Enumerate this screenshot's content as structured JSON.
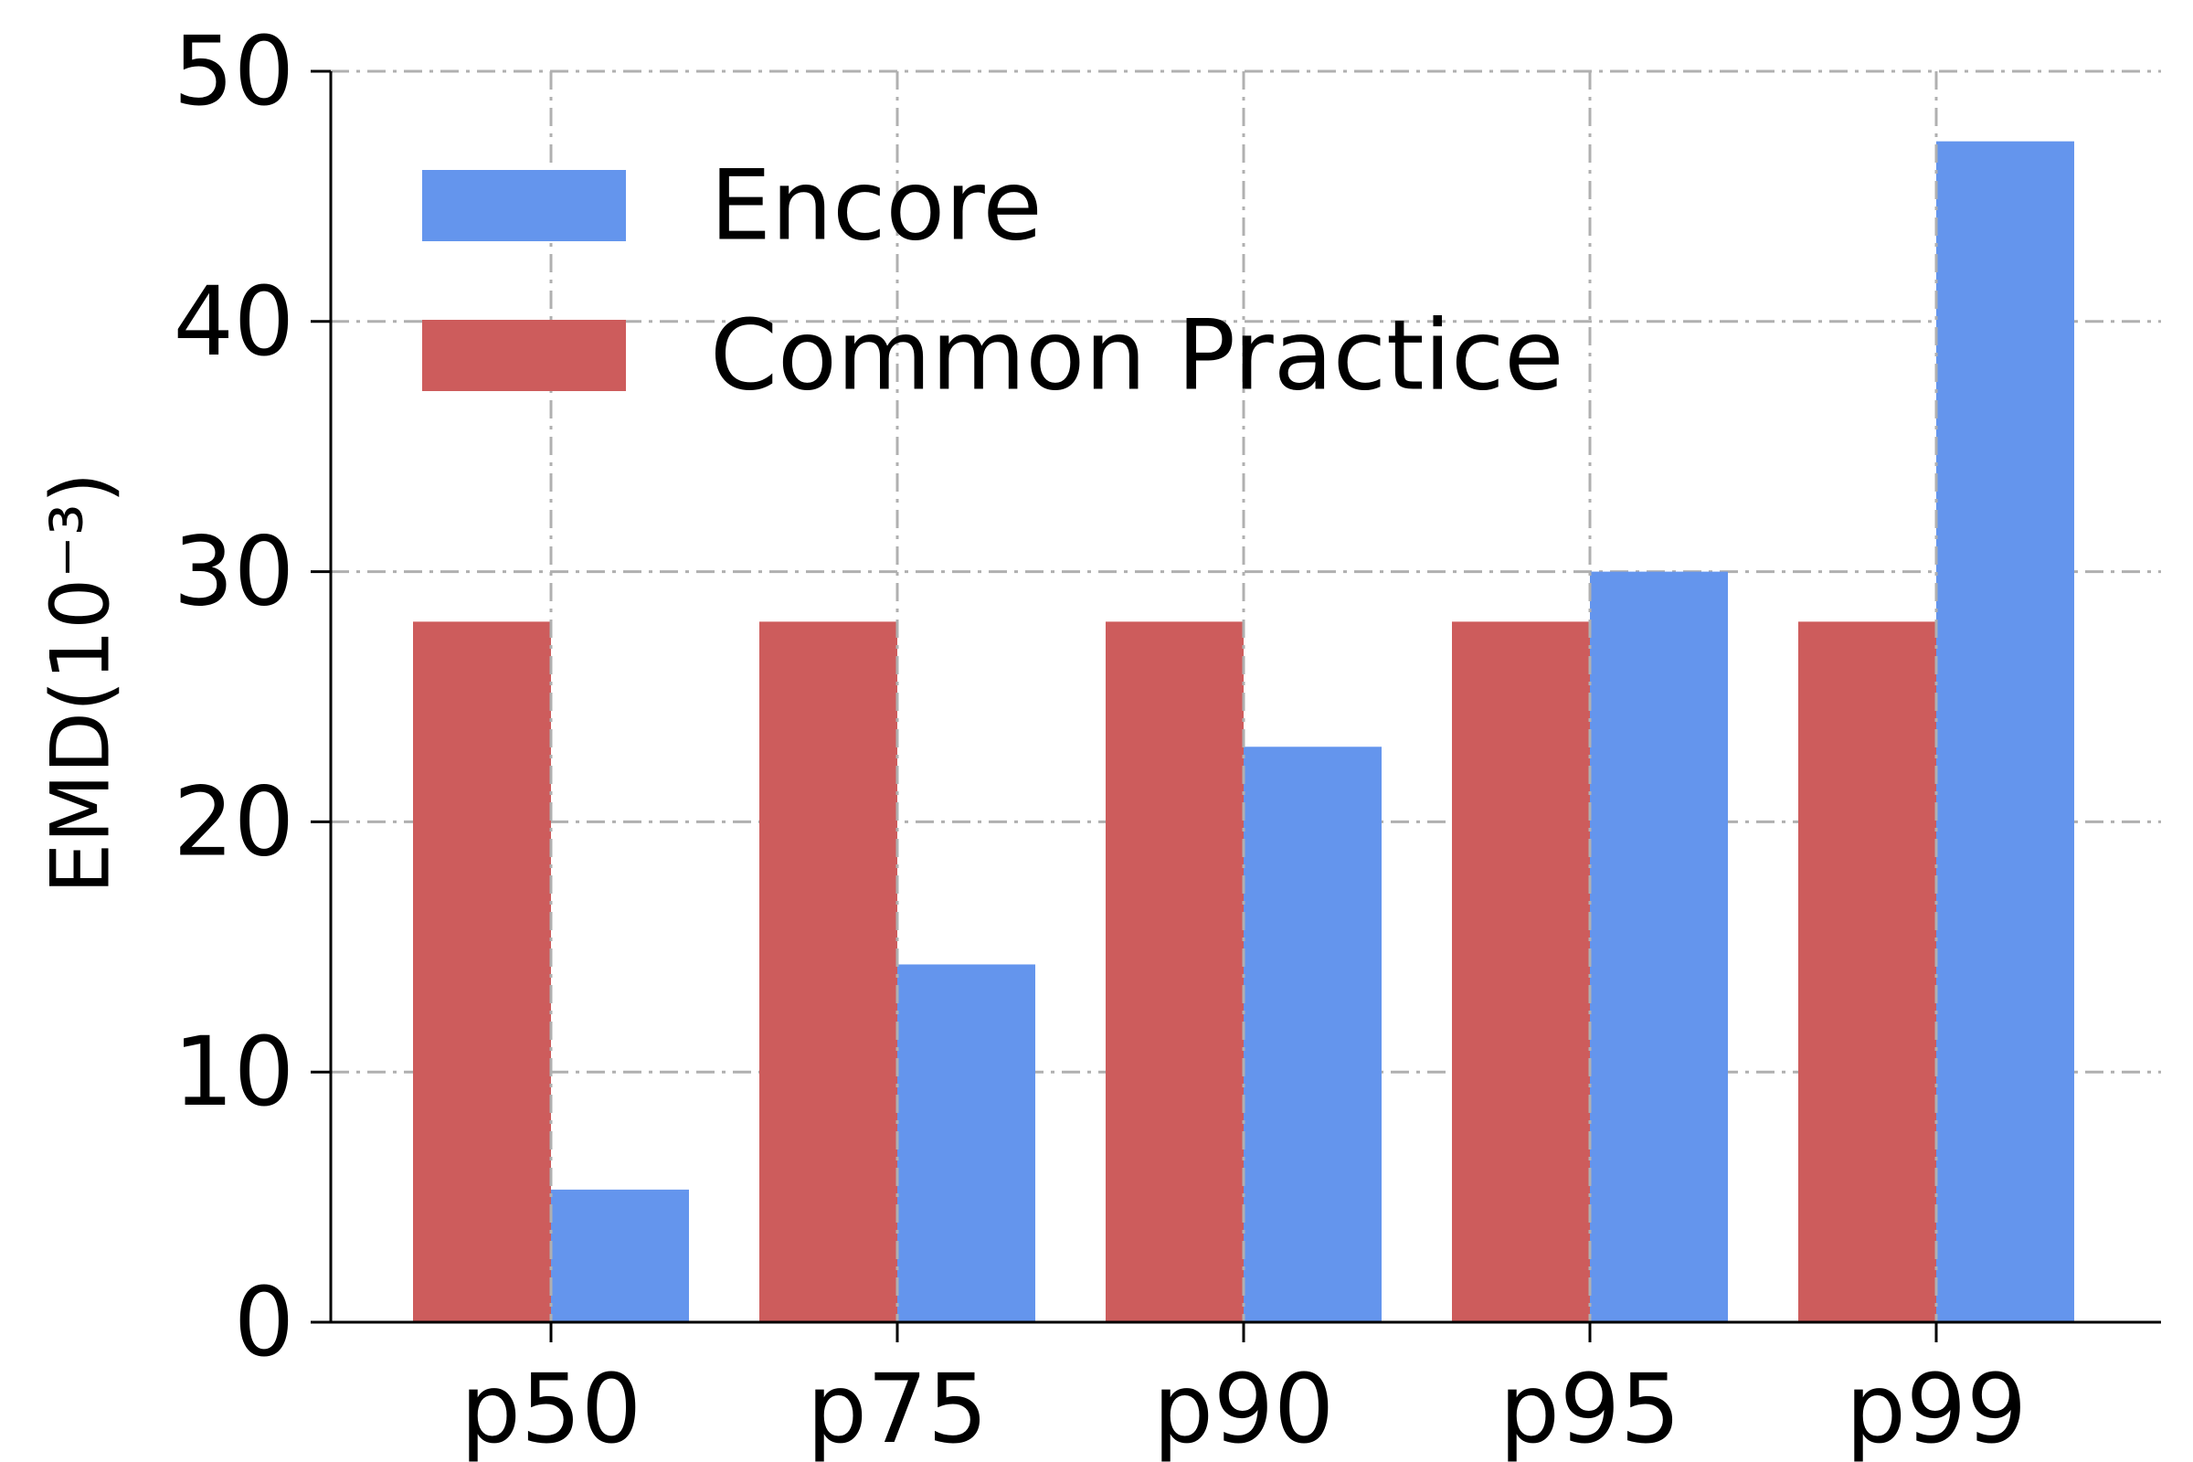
{
  "chart_data": {
    "type": "bar",
    "categories": [
      "p50",
      "p75",
      "p90",
      "p95",
      "p99"
    ],
    "series": [
      {
        "name": "Common Practice",
        "color": "#cd5c5c",
        "values": [
          28,
          28,
          28,
          28,
          28
        ]
      },
      {
        "name": "Encore",
        "color": "#6495ed",
        "values": [
          5.3,
          14.3,
          23,
          30,
          47.2
        ]
      }
    ],
    "ylabel": "EMD(10⁻³)",
    "xlabel": "",
    "title": "",
    "ylim": [
      0,
      50
    ],
    "yticks": [
      0,
      10,
      20,
      30,
      40,
      50
    ],
    "grid": true,
    "legend": {
      "position": "top-left",
      "entries": [
        {
          "label": "Encore",
          "color": "#6495ed"
        },
        {
          "label": "Common Practice",
          "color": "#cd5c5c"
        }
      ]
    }
  }
}
